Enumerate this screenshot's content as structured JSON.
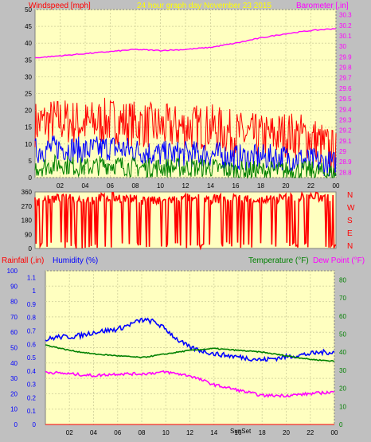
{
  "header": {
    "windspeed_label": "Windspeed [mph]",
    "title": "24 hour graph day   November 23 2015",
    "barometer_label": "Barometer [,in]"
  },
  "wind_dir_letters": [
    "N",
    "W",
    "S",
    "E",
    "N"
  ],
  "bottom_header": {
    "rainfall_label": "Rainfall (,in)",
    "humidity_label": "Humidity (%)",
    "temperature_label": "Temperature (°F)",
    "dewpoint_label": "Dew Point (°F)"
  },
  "annotations": {
    "sunset": "SunSet"
  },
  "colors": {
    "plot_bg": "#ffffc0",
    "wind_gust": "#ff0000",
    "wind_avg": "#0000ff",
    "wind_low": "#008000",
    "barometer": "#ff00ff",
    "direction": "#ff0000",
    "humidity": "#0000ff",
    "temperature": "#008000",
    "dewpoint": "#ff00ff",
    "rainfall": "#ff0000"
  },
  "chart_data": [
    {
      "type": "line",
      "title": "24 hour graph day   November 23 2015",
      "ylabel": "Windspeed [mph]",
      "ylim": [
        0,
        50
      ],
      "y_ticks": [
        0,
        5,
        10,
        15,
        20,
        25,
        30,
        35,
        40,
        45,
        50
      ],
      "y2label": "Barometer [,in]",
      "y2lim": [
        28.75,
        30.35
      ],
      "y2_ticks": [
        "28.8",
        "28.9",
        "29",
        "29.1",
        "29.2",
        "29.3",
        "29.4",
        "29.5",
        "29.6",
        "29.7",
        "29.8",
        "29.9",
        "30",
        "30.1",
        "30.2",
        "30.3"
      ],
      "xlim": [
        0,
        24
      ],
      "x_ticks": [
        "02",
        "04",
        "06",
        "08",
        "10",
        "12",
        "14",
        "16",
        "18",
        "20",
        "22",
        "00"
      ],
      "series": [
        {
          "name": "gust",
          "x": [
            0,
            2,
            4,
            6,
            8,
            10,
            12,
            14,
            16,
            18,
            20,
            22,
            24
          ],
          "values": [
            16,
            17,
            16,
            17,
            16,
            15,
            15,
            15,
            13,
            12,
            13,
            12,
            7
          ]
        },
        {
          "name": "average",
          "x": [
            0,
            2,
            4,
            6,
            8,
            10,
            12,
            14,
            16,
            18,
            20,
            22,
            24
          ],
          "values": [
            8,
            9,
            8,
            9,
            8,
            7,
            7,
            7,
            6,
            6,
            6,
            5,
            4
          ]
        },
        {
          "name": "low",
          "x": [
            0,
            2,
            4,
            6,
            8,
            10,
            12,
            14,
            16,
            18,
            20,
            22,
            24
          ],
          "values": [
            3,
            4,
            3,
            4,
            3,
            3,
            3,
            3,
            2,
            2,
            2,
            2,
            1
          ]
        },
        {
          "name": "barometer",
          "x": [
            0,
            2,
            4,
            6,
            8,
            10,
            12,
            14,
            16,
            18,
            20,
            22,
            24
          ],
          "values": [
            29.89,
            29.91,
            29.93,
            29.95,
            29.97,
            29.96,
            29.97,
            29.99,
            30.03,
            30.08,
            30.12,
            30.15,
            30.17
          ]
        }
      ]
    },
    {
      "type": "scatter",
      "ylim": [
        0,
        360
      ],
      "y_ticks": [
        0,
        90,
        180,
        270,
        360
      ],
      "xlim": [
        0,
        24
      ],
      "series": [
        {
          "name": "direction",
          "x": [
            0,
            2,
            4,
            6,
            8,
            10,
            12,
            14,
            16,
            18,
            20,
            22,
            24
          ],
          "values": [
            300,
            320,
            310,
            330,
            310,
            300,
            320,
            315,
            320,
            310,
            320,
            330,
            320
          ]
        }
      ]
    },
    {
      "type": "line",
      "ylabel": "Humidity (%)",
      "ylim": [
        0,
        100
      ],
      "y_ticks": [
        0,
        10,
        20,
        30,
        40,
        50,
        60,
        70,
        80,
        90,
        100
      ],
      "rain_ylabel": "Rainfall (,in)",
      "rain_ylim": [
        0,
        1.15
      ],
      "rain_ticks": [
        "0",
        "0.1",
        "0.2",
        "0.3",
        "0.4",
        "0.5",
        "0.6",
        "0.7",
        "0.8",
        "0.9",
        "1",
        "1.1"
      ],
      "y2label": "Temperature (°F)",
      "y2lim": [
        0,
        85
      ],
      "y2_ticks": [
        0,
        10,
        20,
        30,
        40,
        50,
        60,
        70,
        80
      ],
      "xlim": [
        0,
        24
      ],
      "x_ticks": [
        "02",
        "04",
        "06",
        "08",
        "10",
        "12",
        "14",
        "16",
        "18",
        "20",
        "22",
        "00"
      ],
      "series": [
        {
          "name": "humidity",
          "x": [
            0,
            1,
            2,
            3,
            4,
            5,
            6,
            7,
            8,
            9,
            10,
            11,
            12,
            13,
            14,
            15,
            16,
            17,
            18,
            19,
            20,
            21,
            22,
            23,
            24
          ],
          "values": [
            55,
            57,
            57,
            58,
            60,
            61,
            62,
            65,
            68,
            67,
            62,
            55,
            50,
            48,
            46,
            45,
            44,
            43,
            42,
            43,
            44,
            45,
            46,
            47,
            47
          ]
        },
        {
          "name": "temperature",
          "x": [
            0,
            2,
            4,
            6,
            8,
            10,
            12,
            14,
            16,
            18,
            20,
            22,
            24
          ],
          "values": [
            44,
            41,
            39,
            38,
            37,
            39,
            41,
            42,
            41,
            40,
            38,
            36,
            35
          ]
        },
        {
          "name": "dewpoint",
          "x": [
            0,
            2,
            4,
            6,
            8,
            10,
            12,
            14,
            16,
            18,
            20,
            22,
            24
          ],
          "values": [
            29,
            28,
            27,
            28,
            28,
            29,
            27,
            22,
            19,
            16,
            16,
            17,
            18
          ]
        },
        {
          "name": "rainfall",
          "x": [
            0,
            24
          ],
          "values": [
            0,
            0
          ]
        }
      ]
    }
  ]
}
